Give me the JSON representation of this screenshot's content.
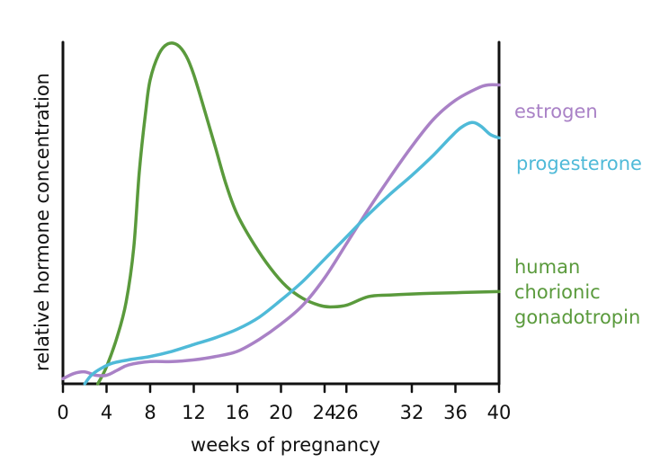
{
  "chart_data": {
    "type": "line",
    "title": "",
    "xlabel": "weeks of pregnancy",
    "ylabel": "relative hormone concentration",
    "xlim": [
      0,
      40
    ],
    "ylim": [
      0,
      100
    ],
    "grid": false,
    "tick_positions": [
      0,
      4,
      8,
      12,
      16,
      20,
      24,
      26,
      32,
      36,
      40
    ],
    "tick_labels": [
      "0",
      "4",
      "8",
      "12",
      "16",
      "20",
      "24",
      "26",
      "32",
      "36",
      "40"
    ],
    "series": [
      {
        "name": "human chorionic gonadotropin",
        "label_lines": [
          "human",
          "chorionic",
          "gonadotropin"
        ],
        "color": "#5a9a3c",
        "points": [
          [
            3.2,
            0
          ],
          [
            4,
            5
          ],
          [
            5,
            14
          ],
          [
            5.8,
            24
          ],
          [
            6.5,
            40
          ],
          [
            7,
            62
          ],
          [
            7.6,
            80
          ],
          [
            8,
            89
          ],
          [
            8.8,
            96.5
          ],
          [
            9.6,
            99.5
          ],
          [
            10.5,
            99.2
          ],
          [
            11.3,
            96
          ],
          [
            12,
            90.5
          ],
          [
            13,
            80
          ],
          [
            14,
            69
          ],
          [
            15,
            58
          ],
          [
            16,
            49.5
          ],
          [
            17.5,
            41
          ],
          [
            19,
            34
          ],
          [
            20.5,
            28.5
          ],
          [
            22,
            25
          ],
          [
            23.5,
            23
          ],
          [
            24.5,
            22.5
          ],
          [
            26,
            23
          ],
          [
            28,
            25.5
          ],
          [
            30,
            26
          ],
          [
            34,
            26.5
          ],
          [
            40,
            27
          ]
        ]
      },
      {
        "name": "estrogen",
        "label_lines": [
          "estrogen"
        ],
        "color": "#a981c6",
        "points": [
          [
            0,
            1.5
          ],
          [
            1,
            3
          ],
          [
            2,
            3.5
          ],
          [
            3,
            2.5
          ],
          [
            4,
            2.5
          ],
          [
            5,
            4
          ],
          [
            6,
            5.5
          ],
          [
            8,
            6.5
          ],
          [
            10,
            6.5
          ],
          [
            12,
            7
          ],
          [
            14,
            8
          ],
          [
            16,
            9.5
          ],
          [
            18,
            13
          ],
          [
            20,
            17.5
          ],
          [
            22,
            23
          ],
          [
            24,
            31
          ],
          [
            26,
            41
          ],
          [
            28,
            51
          ],
          [
            30,
            60.5
          ],
          [
            32,
            69.5
          ],
          [
            34,
            77.5
          ],
          [
            36,
            83
          ],
          [
            38,
            86.5
          ],
          [
            39,
            87.5
          ],
          [
            40,
            87.5
          ]
        ]
      },
      {
        "name": "progesterone",
        "label_lines": [
          "progesterone"
        ],
        "color": "#4fbad8",
        "points": [
          [
            2,
            0
          ],
          [
            2.6,
            2.5
          ],
          [
            3.5,
            4.5
          ],
          [
            4.5,
            6
          ],
          [
            6,
            7
          ],
          [
            8,
            8
          ],
          [
            10,
            9.5
          ],
          [
            12,
            11.5
          ],
          [
            14,
            13.5
          ],
          [
            16,
            16
          ],
          [
            18,
            19.5
          ],
          [
            20,
            24.5
          ],
          [
            22,
            30
          ],
          [
            24,
            36.5
          ],
          [
            26,
            43
          ],
          [
            28,
            49.5
          ],
          [
            30,
            55.5
          ],
          [
            32,
            61
          ],
          [
            34,
            67
          ],
          [
            35.5,
            72
          ],
          [
            36.5,
            75
          ],
          [
            37.5,
            76.5
          ],
          [
            38.3,
            75.5
          ],
          [
            39.2,
            73
          ],
          [
            40,
            72
          ]
        ]
      }
    ]
  }
}
